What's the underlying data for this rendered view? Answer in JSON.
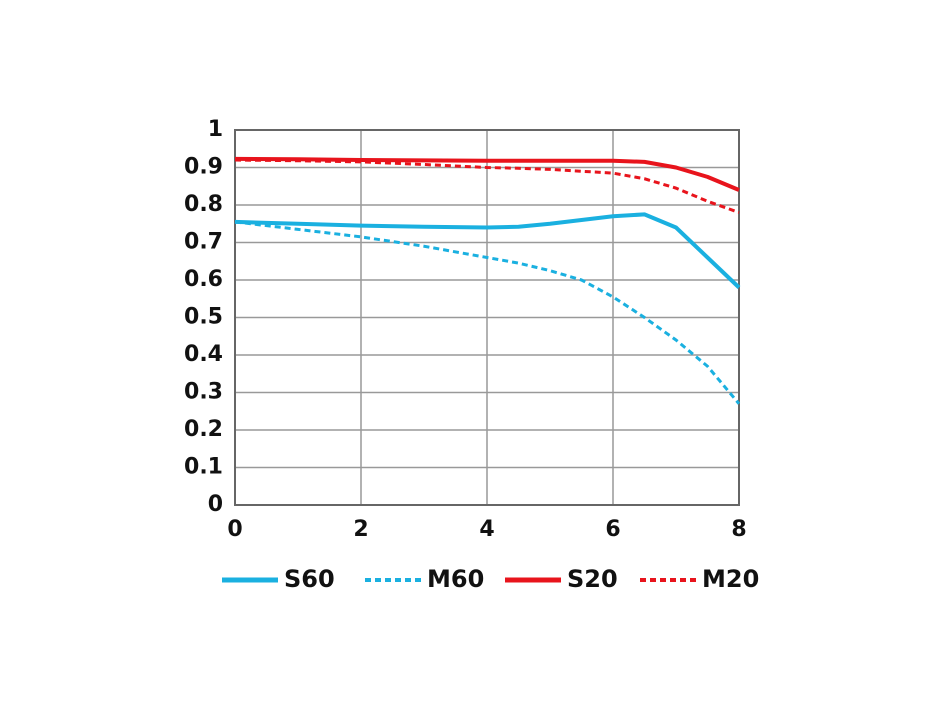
{
  "chart_data": {
    "type": "line",
    "x": [
      0,
      1,
      2,
      3,
      4,
      4.5,
      5,
      5.5,
      6,
      6.5,
      7,
      7.5,
      8
    ],
    "series": [
      {
        "name": "S60",
        "color": "#1ab0e0",
        "style": "solid",
        "values": [
          0.755,
          0.75,
          0.745,
          0.742,
          0.74,
          0.742,
          0.75,
          0.76,
          0.77,
          0.775,
          0.74,
          0.66,
          0.58
        ]
      },
      {
        "name": "M60",
        "color": "#1ab0e0",
        "style": "dashed",
        "values": [
          0.755,
          0.735,
          0.715,
          0.69,
          0.66,
          0.645,
          0.625,
          0.6,
          0.555,
          0.5,
          0.44,
          0.37,
          0.27
        ]
      },
      {
        "name": "S20",
        "color": "#e8141c",
        "style": "solid",
        "values": [
          0.923,
          0.922,
          0.92,
          0.919,
          0.918,
          0.918,
          0.918,
          0.918,
          0.918,
          0.915,
          0.9,
          0.875,
          0.84
        ]
      },
      {
        "name": "M20",
        "color": "#e8141c",
        "style": "dashed",
        "values": [
          0.92,
          0.918,
          0.915,
          0.908,
          0.9,
          0.898,
          0.895,
          0.89,
          0.885,
          0.87,
          0.845,
          0.81,
          0.78
        ]
      }
    ],
    "xlim": [
      0,
      8
    ],
    "xticks": [
      0,
      2,
      4,
      6,
      8
    ],
    "ylim": [
      0,
      1
    ],
    "yticks": [
      0,
      0.1,
      0.2,
      0.3,
      0.4,
      0.5,
      0.6,
      0.7,
      0.8,
      0.9,
      1
    ],
    "grid": true,
    "legend": "bottom"
  }
}
